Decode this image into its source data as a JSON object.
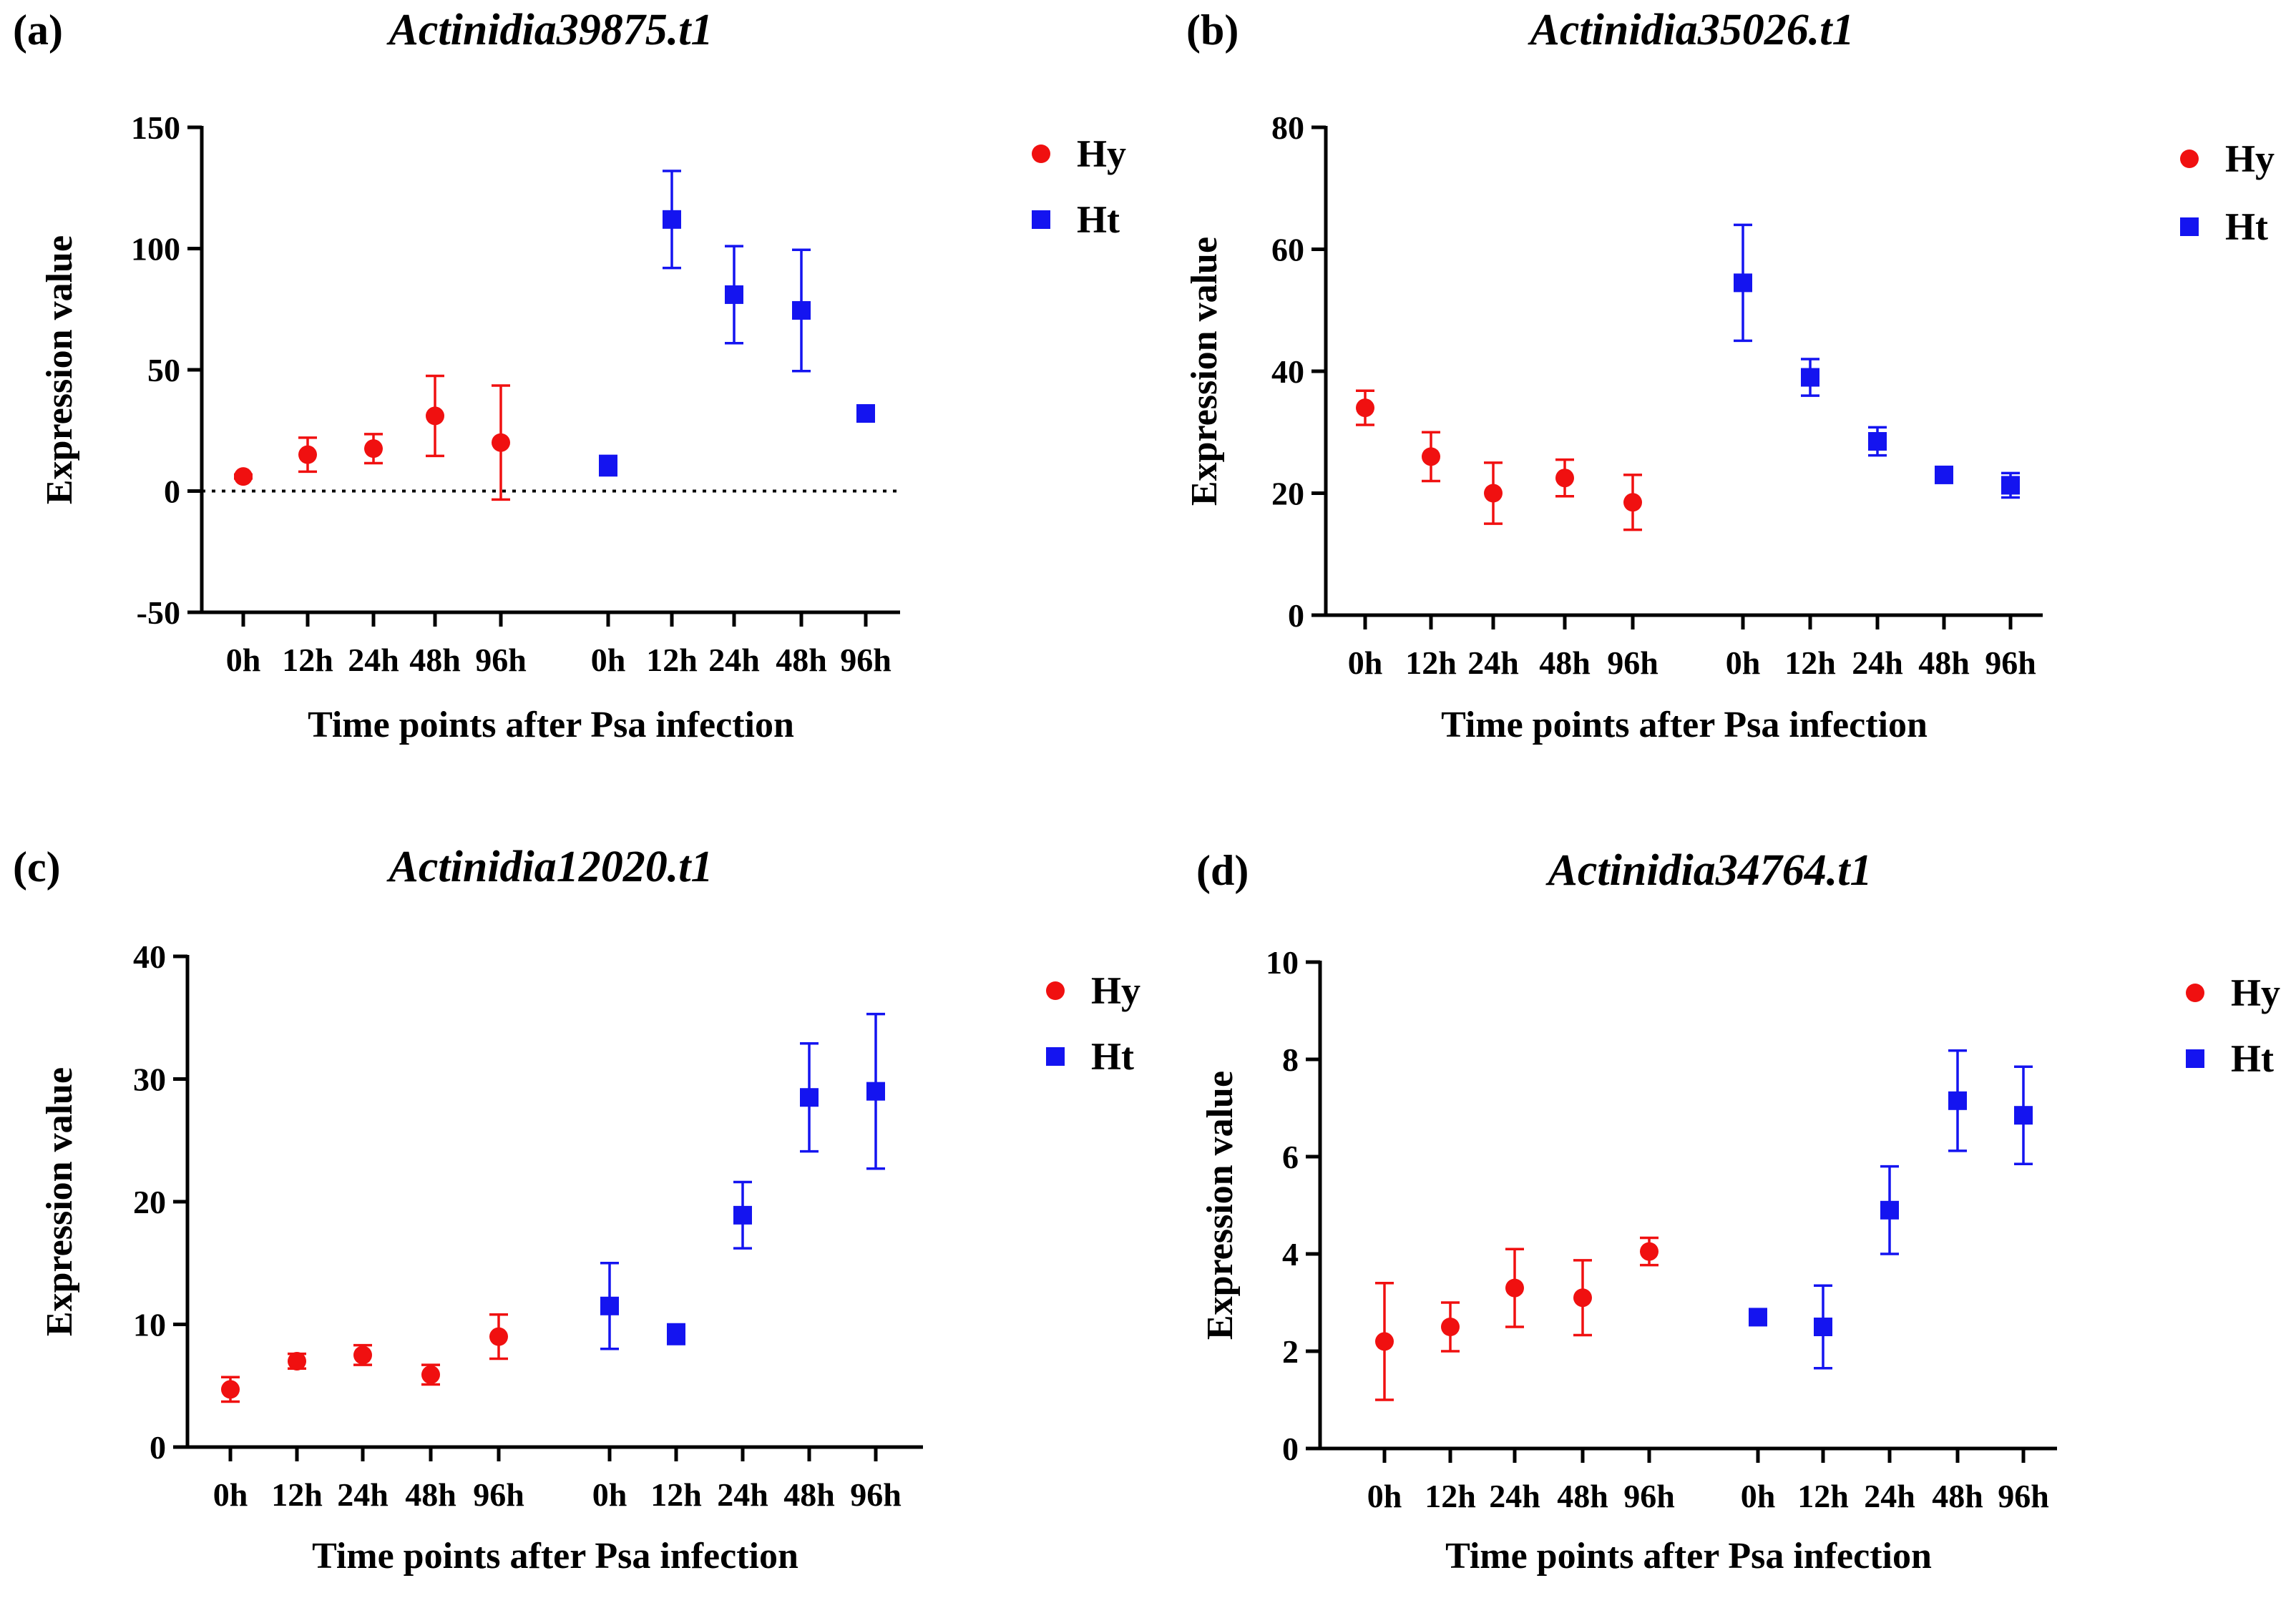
{
  "colors": {
    "hy": "#f01010",
    "ht": "#1414f0",
    "axis": "#000000"
  },
  "chart_data": [
    {
      "type": "scatter",
      "panel": "(a)",
      "title": "Actinidia39875.t1",
      "xlabel": "Time points after Psa infection",
      "ylabel": "Expression value",
      "ylim": [
        -50,
        150
      ],
      "yticks": [
        -50,
        0,
        50,
        100,
        150
      ],
      "zero_line": true,
      "categories": [
        "0h",
        "12h",
        "24h",
        "48h",
        "96h",
        "0h",
        "12h",
        "24h",
        "48h",
        "96h"
      ],
      "legend": [
        {
          "name": "Hy",
          "marker": "circle"
        },
        {
          "name": "Ht",
          "marker": "square"
        }
      ],
      "series": [
        {
          "name": "Hy",
          "marker": "circle",
          "color": "#f01010",
          "x": [
            0,
            1,
            2,
            3,
            4
          ],
          "values": [
            6,
            15,
            17.5,
            31,
            20
          ],
          "err": [
            0.8,
            7,
            6,
            16.5,
            23.5
          ]
        },
        {
          "name": "Ht",
          "marker": "square",
          "color": "#1414f0",
          "x": [
            5,
            6,
            7,
            8,
            9
          ],
          "values": [
            10.5,
            112,
            81,
            74.5,
            32
          ],
          "err": [
            4,
            20,
            20,
            25,
            1
          ]
        }
      ]
    },
    {
      "type": "scatter",
      "panel": "(b)",
      "title": "Actinidia35026.t1",
      "xlabel": "Time points after Psa infection",
      "ylabel": "Expression value",
      "ylim": [
        0,
        80
      ],
      "yticks": [
        0,
        20,
        40,
        60,
        80
      ],
      "zero_line": false,
      "categories": [
        "0h",
        "12h",
        "24h",
        "48h",
        "96h",
        "0h",
        "12h",
        "24h",
        "48h",
        "96h"
      ],
      "legend": [
        {
          "name": "Hy",
          "marker": "circle"
        },
        {
          "name": "Ht",
          "marker": "square"
        }
      ],
      "series": [
        {
          "name": "Hy",
          "marker": "circle",
          "color": "#f01010",
          "x": [
            0,
            1,
            2,
            3,
            4
          ],
          "values": [
            34,
            26,
            20,
            22.5,
            18.5
          ],
          "err": [
            2.8,
            4,
            5,
            3,
            4.5
          ]
        },
        {
          "name": "Ht",
          "marker": "square",
          "color": "#1414f0",
          "x": [
            5,
            6,
            7,
            8,
            9
          ],
          "values": [
            54.5,
            39,
            28.5,
            23,
            21.3
          ],
          "err": [
            9.5,
            3,
            2.3,
            0.8,
            2
          ]
        }
      ]
    },
    {
      "type": "scatter",
      "panel": "(c)",
      "title": "Actinidia12020.t1",
      "xlabel": "Time points after Psa infection",
      "ylabel": "Expression value",
      "ylim": [
        0,
        40
      ],
      "yticks": [
        0,
        10,
        20,
        30,
        40
      ],
      "zero_line": false,
      "categories": [
        "0h",
        "12h",
        "24h",
        "48h",
        "96h",
        "0h",
        "12h",
        "24h",
        "48h",
        "96h"
      ],
      "legend": [
        {
          "name": "Hy",
          "marker": "circle"
        },
        {
          "name": "Ht",
          "marker": "square"
        }
      ],
      "series": [
        {
          "name": "Hy",
          "marker": "circle",
          "color": "#f01010",
          "x": [
            0,
            1,
            2,
            3,
            4
          ],
          "values": [
            4.7,
            7,
            7.5,
            5.9,
            9
          ],
          "err": [
            1,
            0.6,
            0.8,
            0.8,
            1.8
          ]
        },
        {
          "name": "Ht",
          "marker": "square",
          "color": "#1414f0",
          "x": [
            5,
            6,
            7,
            8,
            9
          ],
          "values": [
            11.5,
            9.2,
            18.9,
            28.5,
            29
          ],
          "err": [
            3.5,
            0.8,
            2.7,
            4.4,
            6.3
          ]
        }
      ]
    },
    {
      "type": "scatter",
      "panel": "(d)",
      "title": "Actinidia34764.t1",
      "xlabel": "Time points after Psa infection",
      "ylabel": "Expression value",
      "ylim": [
        0,
        10
      ],
      "yticks": [
        0,
        2,
        4,
        6,
        8,
        10
      ],
      "zero_line": false,
      "categories": [
        "0h",
        "12h",
        "24h",
        "48h",
        "96h",
        "0h",
        "12h",
        "24h",
        "48h",
        "96h"
      ],
      "legend": [
        {
          "name": "Hy",
          "marker": "circle"
        },
        {
          "name": "Ht",
          "marker": "square"
        }
      ],
      "series": [
        {
          "name": "Hy",
          "marker": "circle",
          "color": "#f01010",
          "x": [
            0,
            1,
            2,
            3,
            4
          ],
          "values": [
            2.2,
            2.5,
            3.3,
            3.1,
            4.05
          ],
          "err": [
            1.2,
            0.5,
            0.8,
            0.77,
            0.28
          ]
        },
        {
          "name": "Ht",
          "marker": "square",
          "color": "#1414f0",
          "x": [
            5,
            6,
            7,
            8,
            9
          ],
          "values": [
            2.7,
            2.5,
            4.9,
            7.15,
            6.85
          ],
          "err": [
            0.05,
            0.85,
            0.9,
            1.03,
            1
          ]
        }
      ]
    }
  ]
}
